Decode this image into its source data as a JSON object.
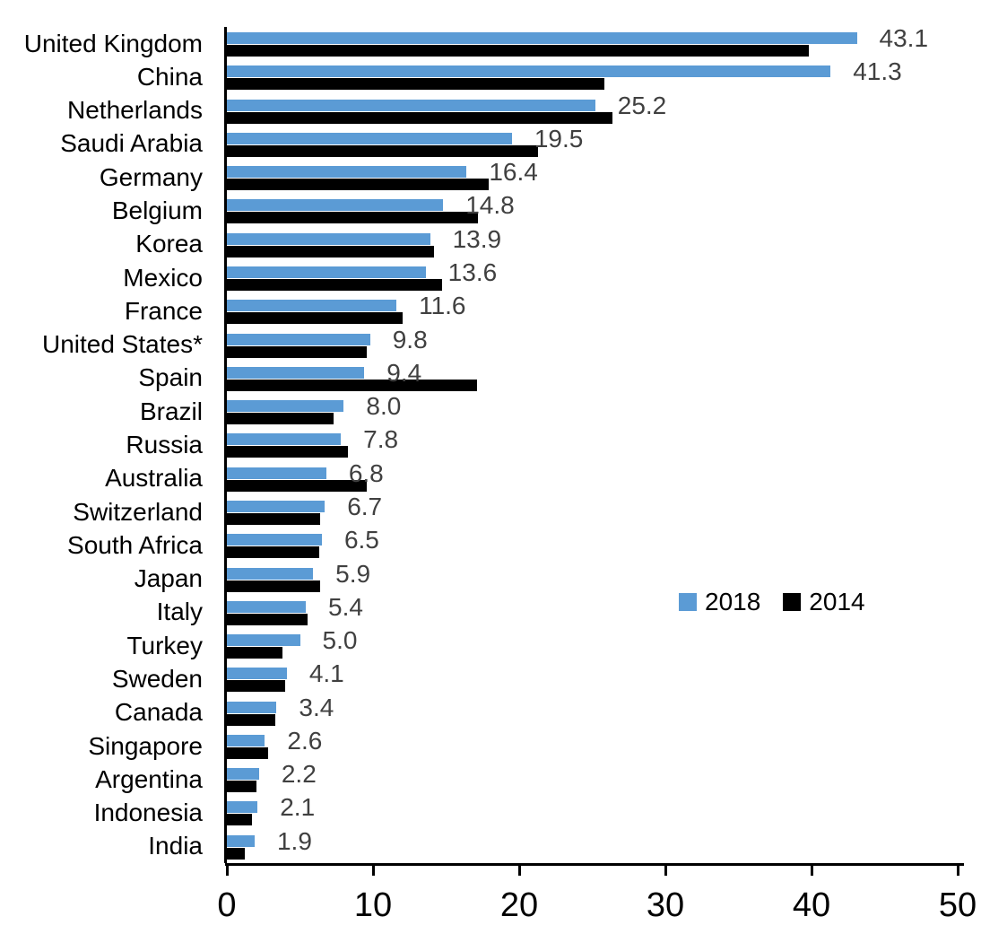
{
  "chart_data": {
    "type": "bar",
    "orientation": "horizontal",
    "title": "",
    "xlabel": "",
    "ylabel": "",
    "xlim": [
      0,
      50
    ],
    "x_ticks": [
      "0",
      "10",
      "20",
      "30",
      "40",
      "50"
    ],
    "grid": false,
    "legend_position": "middle-right",
    "value_label_color": "#404040",
    "categories": [
      "United Kingdom",
      "China",
      "Netherlands",
      "Saudi Arabia",
      "Germany",
      "Belgium",
      "Korea",
      "Mexico",
      "France",
      "United States*",
      "Spain",
      "Brazil",
      "Russia",
      "Australia",
      "Switzerland",
      "South Africa",
      "Japan",
      "Italy",
      "Turkey",
      "Sweden",
      "Canada",
      "Singapore",
      "Argentina",
      "Indonesia",
      "India"
    ],
    "series": [
      {
        "name": "2018",
        "color": "#5B9BD5",
        "values": [
          43.1,
          41.3,
          25.2,
          19.5,
          16.4,
          14.8,
          13.9,
          13.6,
          11.6,
          9.8,
          9.4,
          8.0,
          7.8,
          6.8,
          6.7,
          6.5,
          5.9,
          5.4,
          5.0,
          4.1,
          3.4,
          2.6,
          2.2,
          2.1,
          1.9
        ],
        "labels": [
          "43.1",
          "41.3",
          "25.2",
          "19.5",
          "16.4",
          "14.8",
          "13.9",
          "13.6",
          "11.6",
          "9.8",
          "9.4",
          "8.0",
          "7.8",
          "6.8",
          "6.7",
          "6.5",
          "5.9",
          "5.4",
          "5.0",
          "4.1",
          "3.4",
          "2.6",
          "2.2",
          "2.1",
          "1.9"
        ]
      },
      {
        "name": "2014",
        "color": "#000000",
        "values": [
          39.8,
          25.8,
          26.4,
          21.3,
          17.9,
          17.2,
          14.2,
          14.7,
          12.0,
          9.6,
          17.1,
          7.3,
          8.3,
          9.6,
          6.4,
          6.3,
          6.4,
          5.5,
          3.8,
          4.0,
          3.3,
          2.8,
          2.0,
          1.7,
          1.2
        ]
      }
    ]
  }
}
